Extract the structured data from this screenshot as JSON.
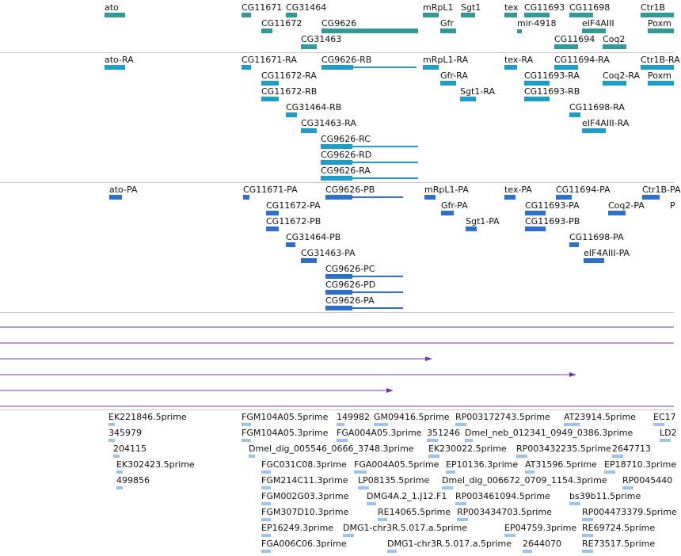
{
  "colors": {
    "gene": "#2f9a96",
    "transcript": "#1aa0c8",
    "protein": "#2d6fcf",
    "variation": "#6a3fa0",
    "est": "#9cc4e8",
    "separator": "#c8c8c8"
  },
  "tracks": {
    "genes": {
      "labels": [
        "ato",
        "CG11671",
        "CG31464",
        "mRpL1",
        "Sgt1",
        "tex",
        "CG11693",
        "CG11698",
        "Ctr1B",
        "CG11672",
        "CG9626",
        "Gfr",
        "mir-4918",
        "eIF4AIII",
        "Poxm",
        "CG31463",
        "CG11694",
        "Coq2"
      ]
    },
    "transcripts": {
      "labels": [
        "ato-RA",
        "CG11671-RA",
        "CG9626-RB",
        "mRpL1-RA",
        "tex-RA",
        "CG11694-RA",
        "Ctr1B-RA",
        "CG11672-RA",
        "Gfr-RA",
        "CG11693-RA",
        "Coq2-RA",
        "Poxm",
        "CG11672-RB",
        "Sgt1-RA",
        "CG11693-RB",
        "CG31464-RB",
        "CG11698-RA",
        "CG31463-RA",
        "eIF4AIII-RA",
        "CG9626-RC",
        "CG9626-RD",
        "CG9626-RA"
      ]
    },
    "proteins": {
      "labels": [
        "ato-PA",
        "CG11671-PA",
        "CG9626-PB",
        "mRpL1-PA",
        "tex-PA",
        "CG11694-PA",
        "Ctr1B-PA",
        "CG11672-PA",
        "Gfr-PA",
        "CG11693-PA",
        "Coq2-PA",
        "P",
        "CG11672-PB",
        "Sgt1-PA",
        "CG11693-PB",
        "CG31464-PB",
        "CG11698-PA",
        "CG31463-PA",
        "eIF4AIII-PA",
        "CG9626-PC",
        "CG9626-PD",
        "CG9626-PA"
      ]
    },
    "ests": {
      "labels": [
        "EK221846.5prime",
        "FGM104A05.5prime",
        "149982",
        "GM09416.5prime",
        "RP003172743.5prime",
        "AT23914.5prime",
        "EC17",
        "345979",
        "FGM104A05.3prime",
        "FGA004A05.3prime",
        "351246",
        "Dmel_neb_012341_0949_0386.3prime",
        "LD2",
        "204115",
        "Dmel_dig_005546_0666_3748.3prime",
        "EK230022.5prime",
        "RP003432235.5prime",
        "2647713",
        "EK302423.5prime",
        "FGC031C08.3prime",
        "FGA004A05.5prime",
        "EP10136.3prime",
        "AT31596.5prime",
        "EP18710.3prime",
        "499856",
        "FGM214C11.3prime",
        "LP08135.5prime",
        "Dmel_dig_006672_0709_1154.3prime",
        "RP0045440",
        "FGM002G03.3prime",
        "DMG4A.2_1.J12.F1",
        "RP003461094.5prime",
        "bs39b11.5prime",
        "FGM307D10.3prime",
        "RE14065.5prime",
        "RP003434703.5prime",
        "RP004473379.5prime",
        "EP16249.3prime",
        "DMG1-chr3R.5.017.a.5prime",
        "EP04759.3prime",
        "RE69724.5prime",
        "FGA006C06.3prime",
        "DMG1-chr3R.5.017.a.5prime",
        "2644070",
        "RE73517.5prime"
      ]
    }
  }
}
